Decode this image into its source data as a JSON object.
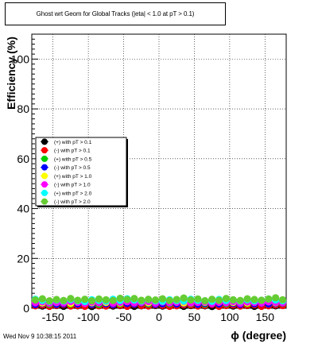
{
  "title": "Ghost wrt Geom for Global Tracks (|eta| < 1.0 at pT > 0.1)",
  "footer": "Wed Nov  9 10:38:15 2011",
  "chart_data": {
    "type": "scatter",
    "title": "Ghost wrt Geom for Global Tracks (|eta| < 1.0 at pT > 0.1)",
    "xlabel": "ϕ (degree)",
    "ylabel": "Efficiency (%)",
    "xlim": [
      -180,
      180
    ],
    "ylim": [
      0,
      110
    ],
    "xticks": [
      -150,
      -100,
      -50,
      0,
      50,
      100,
      150
    ],
    "yticks": [
      0,
      20,
      40,
      60,
      80,
      100
    ],
    "grid": true,
    "legend_position": "middle-left",
    "x": [
      -175,
      -165,
      -155,
      -145,
      -135,
      -125,
      -115,
      -105,
      -95,
      -85,
      -75,
      -65,
      -55,
      -45,
      -35,
      -25,
      -15,
      -5,
      5,
      15,
      25,
      35,
      45,
      55,
      65,
      75,
      85,
      95,
      105,
      115,
      125,
      135,
      145,
      155,
      165,
      175
    ],
    "series": [
      {
        "name": "(+) with pT > 0.1",
        "color": "#000000",
        "values": [
          1.2,
          0.9,
          1.5,
          1.1,
          0.8,
          1.4,
          1.0,
          1.3,
          0.7,
          1.2,
          1.6,
          0.9,
          1.1,
          1.4,
          0.8,
          1.0,
          1.3,
          1.1,
          0.9,
          1.5,
          1.2,
          0.8,
          1.1,
          1.4,
          1.0,
          0.7,
          1.3,
          1.2,
          0.9,
          1.5,
          1.1,
          0.8,
          1.2,
          1.4,
          1.0,
          1.3
        ]
      },
      {
        "name": "(-) with pT > 0.1",
        "color": "#ff0000",
        "values": [
          1.0,
          1.3,
          0.8,
          1.2,
          1.5,
          0.9,
          1.1,
          0.8,
          1.4,
          1.0,
          0.9,
          1.3,
          1.2,
          0.8,
          1.5,
          1.1,
          0.9,
          1.3,
          1.2,
          0.8,
          1.0,
          1.4,
          1.3,
          0.9,
          1.2,
          1.5,
          0.8,
          1.1,
          1.3,
          0.9,
          1.2,
          1.4,
          0.8,
          1.0,
          1.3,
          1.1
        ]
      },
      {
        "name": "(+) with pT > 0.5",
        "color": "#00cc00",
        "values": [
          1.8,
          2.2,
          1.6,
          2.0,
          2.4,
          1.7,
          2.1,
          1.9,
          2.3,
          1.6,
          2.0,
          2.2,
          1.8,
          2.5,
          1.9,
          2.1,
          1.7,
          2.3,
          2.0,
          1.8,
          2.4,
          2.1,
          1.9,
          2.2,
          1.7,
          2.0,
          2.3,
          1.8,
          2.1,
          2.4,
          1.9,
          2.0,
          2.2,
          1.8,
          2.3,
          2.0
        ]
      },
      {
        "name": "(-) with pT > 0.5",
        "color": "#0000ff",
        "values": [
          1.5,
          1.9,
          2.1,
          1.6,
          1.8,
          2.2,
          1.7,
          2.0,
          1.6,
          2.3,
          1.8,
          1.5,
          2.1,
          1.9,
          1.7,
          2.2,
          2.0,
          1.6,
          1.8,
          2.1,
          1.7,
          1.9,
          2.2,
          1.6,
          2.0,
          1.8,
          1.7,
          2.1,
          1.9,
          1.6,
          2.2,
          1.8,
          2.0,
          1.7,
          1.9,
          2.1
        ]
      },
      {
        "name": "(+) with pT > 1.0",
        "color": "#ffff00",
        "values": [
          2.5,
          2.1,
          2.8,
          2.3,
          2.6,
          2.0,
          2.9,
          2.4,
          2.2,
          2.7,
          2.3,
          2.6,
          2.1,
          2.8,
          2.4,
          2.5,
          2.2,
          2.9,
          2.6,
          2.3,
          2.7,
          2.1,
          2.5,
          2.8,
          2.4,
          2.2,
          2.6,
          2.9,
          2.3,
          2.5,
          2.1,
          2.7,
          2.4,
          2.6,
          2.2,
          2.8
        ]
      },
      {
        "name": "(-) with pT > 1.0",
        "color": "#ff00ff",
        "values": [
          2.2,
          2.6,
          2.0,
          2.4,
          2.1,
          2.7,
          2.3,
          1.9,
          2.5,
          2.2,
          2.8,
          2.0,
          2.4,
          2.6,
          2.1,
          2.3,
          2.7,
          2.0,
          2.5,
          2.2,
          2.4,
          2.8,
          2.1,
          2.3,
          2.6,
          1.9,
          2.4,
          2.2,
          2.7,
          2.0,
          2.5,
          2.3,
          2.1,
          2.6,
          2.4,
          2.2
        ]
      },
      {
        "name": "(+) with pT > 2.0",
        "color": "#00ffff",
        "values": [
          3.6,
          3.1,
          2.8,
          3.3,
          2.9,
          3.5,
          3.0,
          2.7,
          3.4,
          3.2,
          2.9,
          3.6,
          3.1,
          3.8,
          3.3,
          2.9,
          3.5,
          3.0,
          2.8,
          3.4,
          3.1,
          2.9,
          3.6,
          3.2,
          3.0,
          2.8,
          3.5,
          3.1,
          3.3,
          2.9,
          3.4,
          3.0,
          3.2,
          3.7,
          3.3,
          3.0
        ]
      },
      {
        "name": "(-) with pT > 2.0",
        "color": "#66cc33",
        "values": [
          3.3,
          3.8,
          3.0,
          3.5,
          3.1,
          3.9,
          3.2,
          3.6,
          3.0,
          3.7,
          3.4,
          3.1,
          4.0,
          3.5,
          3.9,
          3.2,
          3.6,
          3.3,
          3.8,
          3.1,
          3.5,
          4.1,
          3.3,
          3.7,
          3.0,
          3.6,
          3.2,
          3.9,
          3.4,
          3.1,
          3.8,
          3.5,
          3.2,
          3.7,
          4.2,
          3.4
        ]
      }
    ]
  }
}
